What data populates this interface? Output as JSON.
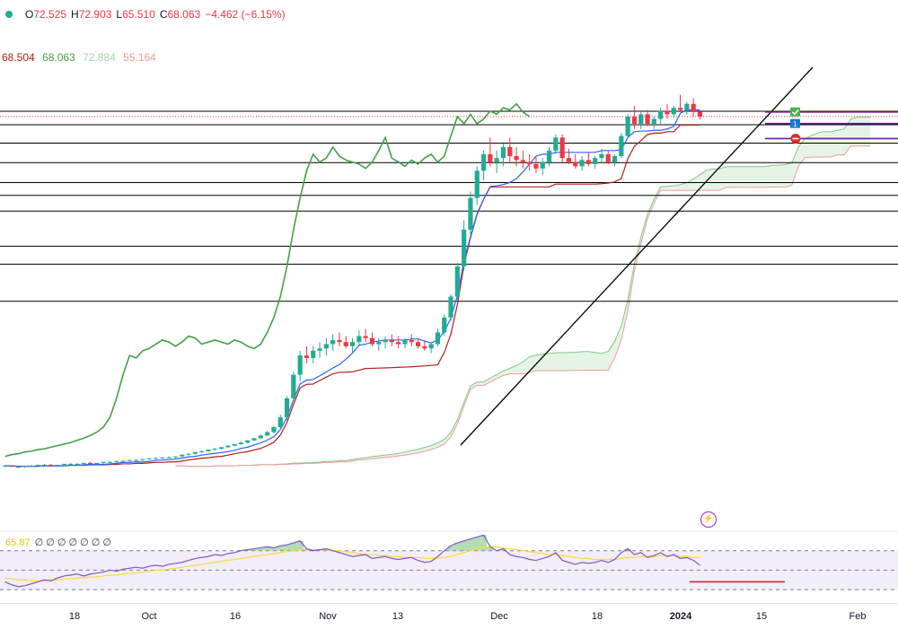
{
  "header": {
    "open_label": "O",
    "open": "72.525",
    "high_label": "H",
    "high": "72.903",
    "low_label": "L",
    "low": "65.510",
    "close_label": "C",
    "close": "68.063",
    "change": "−4.462 (−6.15%)"
  },
  "indicator_values": [
    "68.504",
    "68.063",
    "72.884",
    "55.164"
  ],
  "rsi_legend": {
    "value": "65.87",
    "placeholders": "∅ ∅ ∅ ∅ ∅ ∅ ∅"
  },
  "x_labels": [
    {
      "text": "18",
      "bold": false
    },
    {
      "text": "Oct",
      "bold": false
    },
    {
      "text": "16",
      "bold": false
    },
    {
      "text": "Nov",
      "bold": false
    },
    {
      "text": "13",
      "bold": false
    },
    {
      "text": "Dec",
      "bold": false
    },
    {
      "text": "18",
      "bold": false
    },
    {
      "text": "2024",
      "bold": true
    },
    {
      "text": "15",
      "bold": false
    },
    {
      "text": "Feb",
      "bold": false
    }
  ],
  "colors": {
    "up": "#22ab94",
    "down": "#f23645",
    "tenkan": "#2962ff",
    "kijun": "#b71c1c",
    "chikou": "#43a047",
    "span_a": "#81c784",
    "span_b": "#ef9a9a",
    "rsi": "#7e57c2",
    "rsi_ma": "#fdd835",
    "trendline": "#000000",
    "levels": "#000000"
  },
  "chart_data": {
    "type": "candlestick",
    "interval": "daily",
    "x_range": [
      "mid-Sep",
      "early Feb"
    ],
    "candles": [
      [
        0.78,
        0.79,
        0.77,
        0.78
      ],
      [
        0.78,
        0.78,
        0.77,
        0.77
      ],
      [
        0.77,
        0.78,
        0.76,
        0.77
      ],
      [
        0.77,
        0.78,
        0.76,
        0.78
      ],
      [
        0.78,
        0.79,
        0.77,
        0.78
      ],
      [
        0.78,
        0.79,
        0.77,
        0.79
      ],
      [
        0.79,
        0.8,
        0.78,
        0.79
      ],
      [
        0.79,
        0.8,
        0.78,
        0.78
      ],
      [
        0.78,
        0.79,
        0.77,
        0.79
      ],
      [
        0.79,
        0.8,
        0.78,
        0.8
      ],
      [
        0.8,
        0.81,
        0.79,
        0.8
      ],
      [
        0.8,
        0.81,
        0.79,
        0.8
      ],
      [
        0.8,
        0.81,
        0.79,
        0.81
      ],
      [
        0.81,
        0.82,
        0.8,
        0.8
      ],
      [
        0.8,
        0.81,
        0.79,
        0.81
      ],
      [
        0.81,
        0.82,
        0.8,
        0.82
      ],
      [
        0.82,
        0.83,
        0.81,
        0.82
      ],
      [
        0.82,
        0.83,
        0.81,
        0.83
      ],
      [
        0.83,
        0.84,
        0.82,
        0.83
      ],
      [
        0.83,
        0.84,
        0.82,
        0.84
      ],
      [
        0.84,
        0.85,
        0.83,
        0.84
      ],
      [
        0.84,
        0.85,
        0.83,
        0.85
      ],
      [
        0.85,
        0.86,
        0.84,
        0.86
      ],
      [
        0.86,
        0.87,
        0.85,
        0.86
      ],
      [
        0.86,
        0.87,
        0.85,
        0.87
      ],
      [
        0.87,
        0.88,
        0.86,
        0.87
      ],
      [
        0.87,
        0.88,
        0.86,
        0.88
      ],
      [
        0.88,
        0.9,
        0.87,
        0.9
      ],
      [
        0.9,
        0.92,
        0.89,
        0.91
      ],
      [
        0.91,
        0.93,
        0.9,
        0.93
      ],
      [
        0.93,
        0.95,
        0.92,
        0.94
      ],
      [
        0.94,
        0.96,
        0.93,
        0.96
      ],
      [
        0.96,
        0.98,
        0.95,
        0.97
      ],
      [
        0.97,
        0.99,
        0.96,
        0.99
      ],
      [
        0.99,
        1.01,
        0.98,
        1.01
      ],
      [
        1.01,
        1.03,
        1.0,
        1.03
      ],
      [
        1.03,
        1.06,
        1.02,
        1.05
      ],
      [
        1.05,
        1.08,
        1.04,
        1.08
      ],
      [
        1.08,
        1.12,
        1.07,
        1.11
      ],
      [
        1.11,
        1.16,
        1.1,
        1.15
      ],
      [
        1.15,
        1.22,
        1.14,
        1.2
      ],
      [
        1.2,
        1.3,
        1.18,
        1.28
      ],
      [
        1.28,
        1.5,
        1.25,
        1.45
      ],
      [
        1.45,
        1.9,
        1.4,
        1.85
      ],
      [
        1.85,
        2.6,
        1.8,
        2.5
      ],
      [
        2.5,
        3.4,
        2.3,
        3.2
      ],
      [
        3.2,
        3.6,
        2.9,
        3.1
      ],
      [
        3.1,
        3.6,
        2.9,
        3.4
      ],
      [
        3.4,
        3.8,
        3.1,
        3.5
      ],
      [
        3.5,
        4.0,
        3.2,
        3.7
      ],
      [
        3.7,
        4.2,
        3.4,
        3.9
      ],
      [
        3.9,
        4.3,
        3.6,
        3.8
      ],
      [
        3.8,
        4.1,
        3.5,
        3.6
      ],
      [
        3.6,
        4.0,
        3.3,
        3.8
      ],
      [
        3.8,
        4.4,
        3.6,
        4.1
      ],
      [
        4.1,
        4.5,
        3.8,
        4.0
      ],
      [
        4.0,
        4.3,
        3.6,
        3.7
      ],
      [
        3.7,
        4.0,
        3.4,
        3.8
      ],
      [
        3.8,
        4.1,
        3.5,
        3.9
      ],
      [
        3.9,
        4.2,
        3.6,
        3.8
      ],
      [
        3.8,
        4.1,
        3.5,
        3.7
      ],
      [
        3.7,
        4.0,
        3.5,
        3.9
      ],
      [
        3.9,
        4.2,
        3.6,
        3.8
      ],
      [
        3.8,
        4.0,
        3.5,
        3.6
      ],
      [
        3.6,
        3.9,
        3.4,
        3.5
      ],
      [
        3.5,
        3.8,
        3.3,
        3.7
      ],
      [
        3.7,
        4.5,
        3.6,
        4.3
      ],
      [
        4.3,
        5.4,
        4.1,
        5.2
      ],
      [
        5.2,
        7.0,
        5.0,
        6.8
      ],
      [
        6.8,
        10.5,
        6.5,
        10.0
      ],
      [
        10.0,
        18.0,
        9.5,
        16.0
      ],
      [
        16.0,
        26.0,
        15.0,
        24.0
      ],
      [
        24.0,
        36.0,
        22.0,
        34.0
      ],
      [
        34.0,
        44.0,
        30.0,
        42.0
      ],
      [
        42.0,
        52.0,
        36.0,
        38.0
      ],
      [
        38.0,
        44.0,
        33.0,
        40.0
      ],
      [
        40.0,
        48.0,
        36.0,
        46.0
      ],
      [
        46.0,
        52.0,
        38.0,
        41.0
      ],
      [
        41.0,
        46.0,
        36.0,
        39.0
      ],
      [
        39.0,
        44.0,
        35.0,
        38.0
      ],
      [
        38.0,
        42.0,
        34.0,
        37.0
      ],
      [
        37.0,
        41.0,
        33.0,
        35.0
      ],
      [
        35.0,
        40.0,
        32.0,
        38.0
      ],
      [
        38.0,
        46.0,
        36.0,
        44.0
      ],
      [
        44.0,
        54.0,
        42.0,
        52.0
      ],
      [
        52.0,
        54.0,
        38.0,
        40.0
      ],
      [
        40.0,
        45.0,
        37.0,
        38.0
      ],
      [
        38.0,
        42.0,
        35.0,
        36.0
      ],
      [
        36.0,
        41.0,
        34.0,
        39.0
      ],
      [
        39.0,
        43.0,
        36.0,
        37.0
      ],
      [
        37.0,
        41.0,
        35.0,
        40.0
      ],
      [
        40.0,
        45.0,
        38.0,
        42.0
      ],
      [
        42.0,
        44.0,
        37.0,
        38.0
      ],
      [
        38.0,
        42.0,
        36.0,
        41.0
      ],
      [
        41.0,
        55.0,
        40.0,
        53.0
      ],
      [
        53.0,
        70.0,
        52.0,
        68.0
      ],
      [
        68.0,
        78.0,
        58.0,
        62.0
      ],
      [
        62.0,
        72.0,
        58.0,
        70.0
      ],
      [
        70.0,
        74.0,
        60.0,
        62.0
      ],
      [
        62.0,
        68.0,
        58.0,
        66.0
      ],
      [
        66.0,
        76.0,
        62.0,
        73.0
      ],
      [
        73.0,
        80.0,
        66.0,
        70.0
      ],
      [
        70.0,
        78.0,
        67.0,
        76.0
      ],
      [
        76.0,
        90.0,
        72.0,
        74.0
      ],
      [
        74.0,
        82.0,
        70.0,
        80.0
      ],
      [
        80.0,
        86.0,
        68.0,
        72.0
      ],
      [
        72.525,
        72.903,
        65.51,
        68.063
      ]
    ],
    "horizontal_levels": [
      72.8,
      61.3,
      48.4,
      37.7,
      29.2,
      24.8,
      20.3,
      12.95,
      10.3,
      6.4
    ],
    "markers": [
      {
        "type": "check",
        "level": 72.1
      },
      {
        "type": "number",
        "label": "1",
        "level": 62.2
      },
      {
        "type": "minus",
        "level": 51.3
      }
    ],
    "y_scale": "log",
    "y_range": [
      0.6,
      110
    ],
    "rsi": {
      "period_value": 65.87,
      "levels": [
        70,
        50,
        30
      ],
      "values": [
        38,
        35,
        33,
        34,
        36,
        38,
        40,
        39,
        42,
        44,
        45,
        46,
        44,
        46,
        47,
        48,
        50,
        49,
        51,
        52,
        53,
        52,
        54,
        55,
        54,
        56,
        57,
        58,
        60,
        62,
        63,
        64,
        66,
        65,
        67,
        68,
        70,
        71,
        72,
        73,
        74,
        73,
        75,
        76,
        78,
        80,
        72,
        70,
        71,
        72,
        70,
        68,
        66,
        64,
        65,
        66,
        62,
        63,
        64,
        62,
        61,
        62,
        63,
        60,
        58,
        59,
        64,
        70,
        75,
        78,
        80,
        82,
        84,
        86,
        74,
        70,
        72,
        66,
        64,
        63,
        61,
        60,
        62,
        64,
        68,
        60,
        58,
        56,
        58,
        57,
        58,
        60,
        58,
        61,
        68,
        72,
        66,
        68,
        63,
        65,
        68,
        64,
        66,
        62,
        63,
        60,
        55
      ],
      "ma_values": [
        42,
        41,
        40,
        40,
        39,
        39,
        39,
        40,
        40,
        41,
        41,
        42,
        42,
        43,
        43,
        44,
        45,
        45,
        46,
        47,
        47,
        48,
        49,
        50,
        50,
        51,
        52,
        53,
        54,
        55,
        56,
        57,
        58,
        59,
        60,
        61,
        62,
        63,
        64,
        65,
        66,
        67,
        68,
        69,
        70,
        71,
        71,
        71,
        71,
        71,
        70,
        70,
        69,
        68,
        67,
        66,
        66,
        65,
        65,
        64,
        64,
        63,
        63,
        63,
        62,
        62,
        62,
        63,
        64,
        66,
        68,
        70,
        72,
        74,
        74,
        74,
        73,
        72,
        71,
        70,
        69,
        68,
        67,
        66,
        66,
        65,
        64,
        63,
        62,
        62,
        61,
        61,
        61,
        61,
        62,
        63,
        63,
        64,
        64,
        64,
        65,
        65,
        65,
        64,
        64,
        63,
        63
      ],
      "target_line": 38
    }
  }
}
